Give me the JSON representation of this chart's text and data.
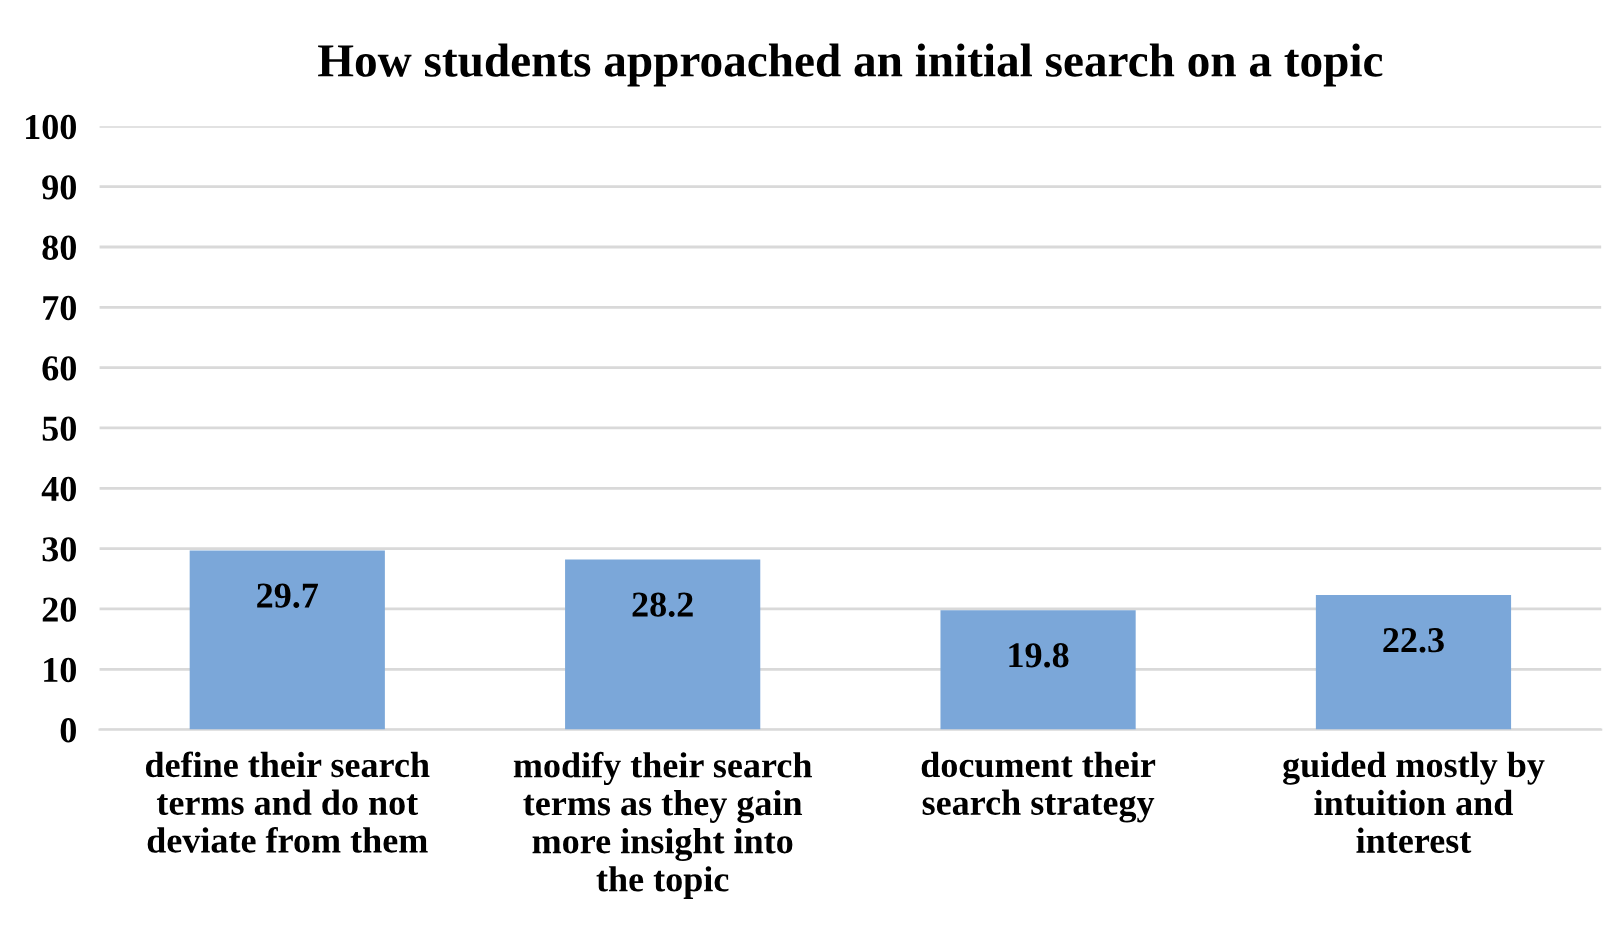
{
  "chart_data": {
    "type": "bar",
    "title": "How students approached an initial search on a topic",
    "categories": [
      "define their search terms and do not deviate from them",
      "modify their search terms as they gain more insight into the topic",
      "document their search strategy",
      "guided mostly by intuition and interest"
    ],
    "values": [
      29.7,
      28.2,
      19.8,
      22.3
    ],
    "color": "#7ba7d9",
    "ylim": [
      0,
      100
    ],
    "yticks": [
      0,
      10,
      20,
      30,
      40,
      50,
      60,
      70,
      80,
      90,
      100
    ],
    "grid": "y",
    "data_labels": true
  }
}
